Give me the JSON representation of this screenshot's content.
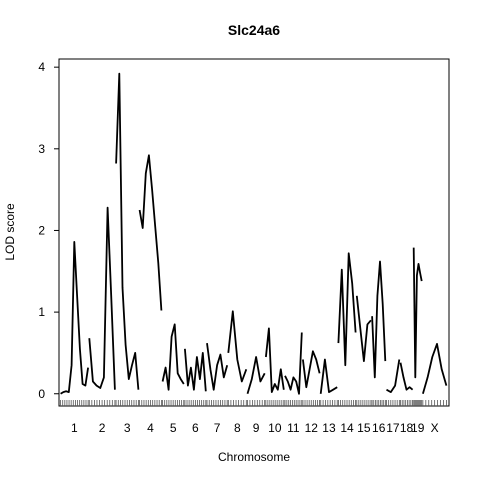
{
  "chart_data": {
    "type": "line",
    "title": "Slc24a6",
    "xlabel": "Chromosome",
    "ylabel": "LOD score",
    "ylim": [
      0,
      4.2
    ],
    "yticks": [
      0,
      1,
      2,
      3,
      4
    ],
    "grid": false,
    "legend": "none",
    "line_color": "#000000",
    "chromosomes": [
      {
        "label": "1",
        "start": 0,
        "end": 195,
        "lod": [
          0.0,
          0.02,
          0.03,
          0.02,
          0.35,
          1.86,
          1.2,
          0.55,
          0.12,
          0.1,
          0.32
        ]
      },
      {
        "label": "2",
        "start": 195,
        "end": 377,
        "lod": [
          0.68,
          0.15,
          0.1,
          0.07,
          0.2,
          2.28,
          1.2,
          0.05
        ]
      },
      {
        "label": "3",
        "start": 377,
        "end": 537,
        "lod": [
          2.82,
          3.92,
          1.3,
          0.6,
          0.18,
          0.35,
          0.5,
          0.05
        ]
      },
      {
        "label": "4",
        "start": 537,
        "end": 693,
        "lod": [
          2.25,
          2.03,
          2.7,
          2.92,
          2.5,
          2.05,
          1.6,
          1.02
        ]
      },
      {
        "label": "5",
        "start": 693,
        "end": 845,
        "lod": [
          0.15,
          0.32,
          0.05,
          0.7,
          0.85,
          0.25,
          0.18,
          0.12
        ]
      },
      {
        "label": "6",
        "start": 845,
        "end": 995,
        "lod": [
          0.55,
          0.1,
          0.32,
          0.05,
          0.45,
          0.18,
          0.5,
          0.03
        ]
      },
      {
        "label": "7",
        "start": 995,
        "end": 1140,
        "lod": [
          0.62,
          0.3,
          0.05,
          0.35,
          0.48,
          0.2,
          0.35
        ]
      },
      {
        "label": "8",
        "start": 1140,
        "end": 1270,
        "lod": [
          0.5,
          1.01,
          0.42,
          0.15,
          0.3
        ]
      },
      {
        "label": "9",
        "start": 1270,
        "end": 1395,
        "lod": [
          0.0,
          0.18,
          0.45,
          0.15,
          0.25
        ]
      },
      {
        "label": "10",
        "start": 1395,
        "end": 1525,
        "lod": [
          0.45,
          0.8,
          0.02,
          0.12,
          0.05,
          0.3,
          0.05
        ]
      },
      {
        "label": "11",
        "start": 1525,
        "end": 1647,
        "lod": [
          0.22,
          0.15,
          0.05,
          0.2,
          0.15,
          0.0,
          0.75
        ]
      },
      {
        "label": "12",
        "start": 1647,
        "end": 1768,
        "lod": [
          0.42,
          0.08,
          0.3,
          0.52,
          0.42,
          0.25
        ]
      },
      {
        "label": "13",
        "start": 1768,
        "end": 1888,
        "lod": [
          0.0,
          0.42,
          0.02,
          0.05,
          0.08
        ]
      },
      {
        "label": "14",
        "start": 1888,
        "end": 2013,
        "lod": [
          0.62,
          1.52,
          0.35,
          1.72,
          1.35,
          0.75
        ]
      },
      {
        "label": "15",
        "start": 2013,
        "end": 2117,
        "lod": [
          1.2,
          0.8,
          0.4,
          0.85,
          0.9
        ]
      },
      {
        "label": "16",
        "start": 2117,
        "end": 2215,
        "lod": [
          0.95,
          0.2,
          1.2,
          1.62,
          1.1,
          0.4
        ]
      },
      {
        "label": "17",
        "start": 2215,
        "end": 2310,
        "lod": [
          0.05,
          0.02,
          0.1,
          0.42
        ]
      },
      {
        "label": "18",
        "start": 2310,
        "end": 2400,
        "lod": [
          0.38,
          0.2,
          0.05,
          0.08,
          0.05
        ]
      },
      {
        "label": "19",
        "start": 2400,
        "end": 2462,
        "lod": [
          1.79,
          0.2,
          1.45,
          1.59,
          1.48,
          1.38
        ]
      },
      {
        "label": "X",
        "start": 2462,
        "end": 2630,
        "lod": [
          0.0,
          0.2,
          0.45,
          0.61,
          0.3,
          0.1
        ]
      }
    ]
  }
}
